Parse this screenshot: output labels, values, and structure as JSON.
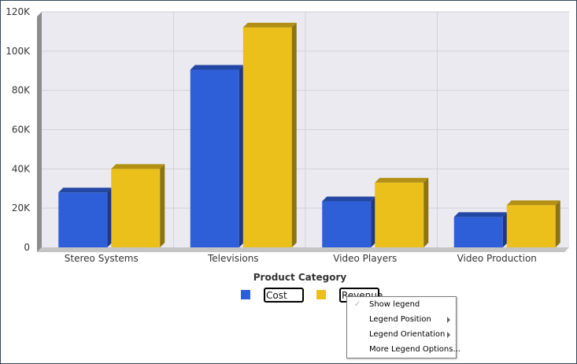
{
  "chart_data": {
    "type": "bar",
    "categories": [
      "Stereo Systems",
      "Televisions",
      "Video Players",
      "Video Production"
    ],
    "series": [
      {
        "name": "Cost",
        "color": "#2f5fd8",
        "values": [
          28000,
          90500,
          23500,
          15500
        ]
      },
      {
        "name": "Revenue",
        "color": "#ecc01a",
        "values": [
          40000,
          112000,
          33000,
          21500
        ]
      }
    ],
    "xlabel": "Product Category",
    "ylabel": "",
    "ylim": [
      0,
      120000
    ],
    "yticks": [
      0,
      20000,
      40000,
      60000,
      80000,
      100000,
      120000
    ],
    "ytick_labels": [
      "0",
      "20K",
      "40K",
      "60K",
      "80K",
      "100K",
      "120K"
    ],
    "grid": true,
    "legend_position": "bottom"
  },
  "context_menu": {
    "items": [
      {
        "label": "Show legend",
        "checked": true,
        "submenu": false
      },
      {
        "label": "Legend Position",
        "checked": false,
        "submenu": true
      },
      {
        "label": "Legend Orientation",
        "checked": false,
        "submenu": true
      },
      {
        "label": "More Legend Options...",
        "checked": false,
        "submenu": false
      }
    ],
    "check_glyph": "✓"
  }
}
